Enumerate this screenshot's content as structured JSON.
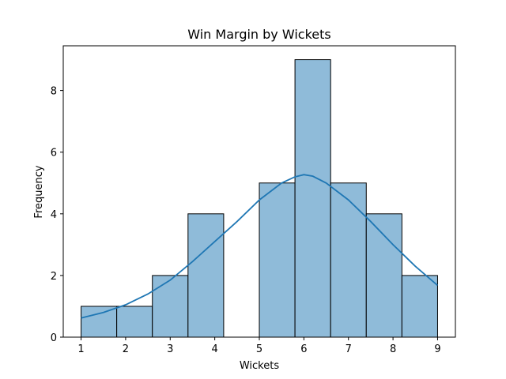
{
  "chart_data": {
    "type": "bar",
    "title": "Win Margin by Wickets",
    "xlabel": "Wickets",
    "ylabel": "Frequency",
    "xlim": [
      0.6,
      9.4
    ],
    "ylim": [
      0,
      9.45
    ],
    "xticks": [
      "1",
      "2",
      "3",
      "4",
      "5",
      "6",
      "7",
      "8",
      "9"
    ],
    "yticks": [
      "0",
      "2",
      "4",
      "6",
      "8"
    ],
    "bins": [
      {
        "start": 1.0,
        "end": 1.8,
        "count": 1
      },
      {
        "start": 1.8,
        "end": 2.6,
        "count": 1
      },
      {
        "start": 2.6,
        "end": 3.4,
        "count": 2
      },
      {
        "start": 3.4,
        "end": 4.2,
        "count": 4
      },
      {
        "start": 4.2,
        "end": 5.0,
        "count": 0
      },
      {
        "start": 5.0,
        "end": 5.8,
        "count": 5
      },
      {
        "start": 5.8,
        "end": 6.6,
        "count": 9
      },
      {
        "start": 6.6,
        "end": 7.4,
        "count": 5
      },
      {
        "start": 7.4,
        "end": 8.2,
        "count": 4
      },
      {
        "start": 8.2,
        "end": 9.0,
        "count": 2
      }
    ],
    "kde": {
      "x": [
        1.0,
        1.5,
        2.0,
        2.5,
        3.0,
        3.5,
        4.0,
        4.5,
        5.0,
        5.5,
        5.8,
        6.0,
        6.2,
        6.5,
        7.0,
        7.5,
        8.0,
        8.5,
        9.0
      ],
      "y": [
        0.62,
        0.8,
        1.05,
        1.4,
        1.85,
        2.45,
        3.1,
        3.75,
        4.45,
        5.0,
        5.2,
        5.27,
        5.22,
        5.0,
        4.45,
        3.75,
        3.0,
        2.3,
        1.68
      ]
    },
    "bar_color": "#8fbbd9",
    "bar_edge_color": "#000000",
    "line_color": "#1f77b4",
    "grid": false,
    "legend": "none"
  }
}
